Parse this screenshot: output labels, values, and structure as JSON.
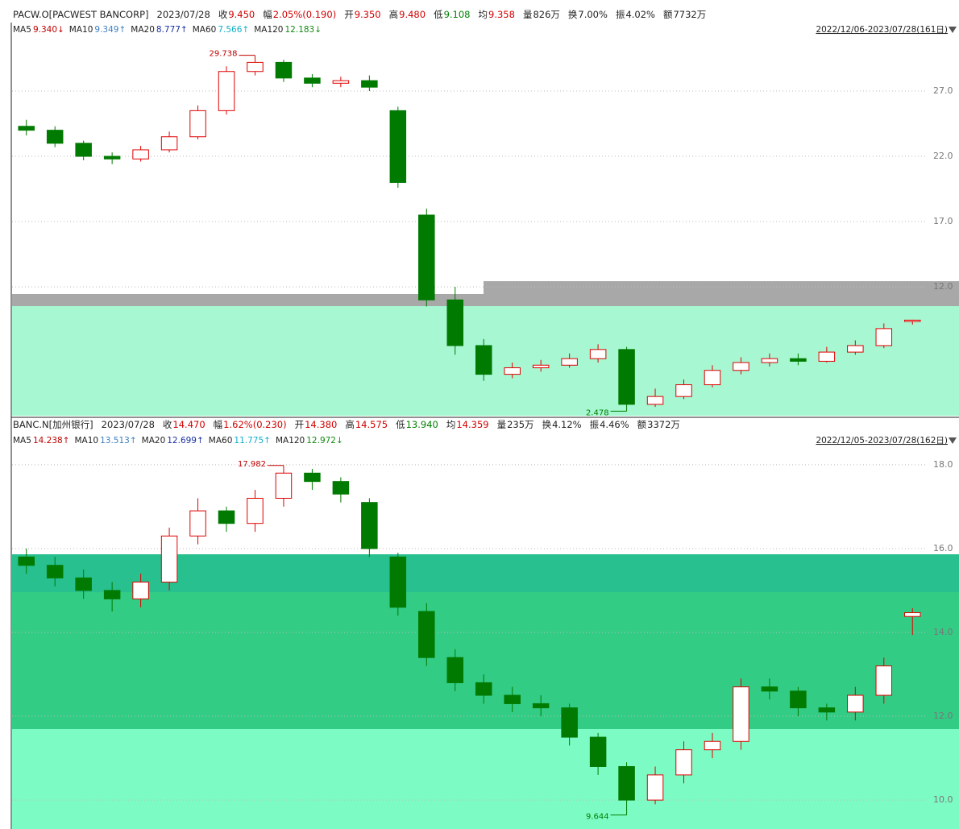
{
  "chart_data": [
    {
      "type": "candlestick",
      "info": [
        {
          "label": "PACW.O[PACWEST BANCORP]",
          "value": "2023/07/28",
          "color": "#222"
        },
        {
          "label": "收",
          "value": "9.450",
          "color": "#d00000"
        },
        {
          "label": "幅",
          "value": "2.05%(0.190)",
          "color": "#d00000"
        },
        {
          "label": "开",
          "value": "9.350",
          "color": "#d00000"
        },
        {
          "label": "高",
          "value": "9.480",
          "color": "#d00000"
        },
        {
          "label": "低",
          "value": "9.108",
          "color": "#008000"
        },
        {
          "label": "均",
          "value": "9.358",
          "color": "#d00000"
        },
        {
          "label": "量",
          "value": "826万",
          "color": "#222"
        },
        {
          "label": "换",
          "value": "7.00%",
          "color": "#222"
        },
        {
          "label": "振",
          "value": "4.02%",
          "color": "#222"
        },
        {
          "label": "额",
          "value": "7732万",
          "color": "#222"
        }
      ],
      "ma_legend": [
        {
          "name": "MA5",
          "value": "9.340↓",
          "color": "#c00000"
        },
        {
          "name": "MA10",
          "value": "9.349↑",
          "color": "#3d7fbf"
        },
        {
          "name": "MA20",
          "value": "8.777↑",
          "color": "#1a2fa0"
        },
        {
          "name": "MA60",
          "value": "7.566↑",
          "color": "#10b0c8"
        },
        {
          "name": "MA120",
          "value": "12.183↓",
          "color": "#128a12"
        }
      ],
      "range": "2022/12/06-2023/07/28(161日)",
      "ylim": [
        2.19,
        31.2
      ],
      "yticks": [
        {
          "value": 27,
          "label": "27.0"
        },
        {
          "value": 22,
          "label": "22.0"
        },
        {
          "value": 17,
          "label": "17.0"
        },
        {
          "value": 12,
          "label": "12.0"
        }
      ],
      "grid": true,
      "up_color": "#e00000",
      "down_color": "#007a00",
      "open": [
        24.3,
        24.0,
        23.0,
        22.0,
        21.8,
        22.5,
        23.5,
        25.5,
        28.5,
        29.2,
        28.0,
        27.6,
        27.8,
        25.5,
        17.5,
        11.0,
        7.5,
        5.3,
        5.8,
        6.0,
        6.5,
        7.2,
        3.0,
        3.6,
        4.5,
        5.6,
        6.2,
        6.5,
        6.3,
        7.0,
        7.5,
        9.35
      ],
      "high": [
        24.8,
        24.3,
        23.2,
        22.3,
        22.8,
        23.9,
        25.9,
        28.9,
        29.738,
        29.4,
        28.3,
        28.1,
        28.2,
        25.8,
        18.0,
        12.0,
        8.0,
        6.2,
        6.4,
        6.9,
        7.6,
        7.4,
        4.2,
        4.9,
        6.0,
        6.6,
        6.9,
        6.9,
        7.4,
        7.9,
        9.2,
        9.48
      ],
      "low": [
        23.6,
        22.7,
        21.7,
        21.4,
        21.6,
        22.3,
        23.3,
        25.2,
        28.2,
        27.7,
        27.3,
        27.3,
        27.0,
        19.6,
        10.5,
        6.8,
        4.8,
        5.0,
        5.5,
        5.8,
        6.2,
        2.478,
        2.8,
        3.4,
        4.3,
        5.3,
        5.9,
        6.0,
        6.2,
        6.8,
        7.3,
        9.108
      ],
      "close": [
        24.0,
        23.0,
        22.0,
        21.8,
        22.5,
        23.5,
        25.5,
        28.5,
        29.2,
        28.0,
        27.6,
        27.8,
        27.3,
        20.0,
        11.0,
        7.5,
        5.3,
        5.8,
        6.0,
        6.5,
        7.2,
        3.0,
        3.6,
        4.5,
        5.6,
        6.2,
        6.5,
        6.3,
        7.0,
        7.5,
        8.8,
        9.45
      ],
      "annotations": [
        {
          "label": "29.738",
          "x": 8,
          "y": 29.738
        },
        {
          "label": "2.478",
          "x": 21,
          "y": 2.478
        }
      ]
    },
    {
      "type": "candlestick",
      "info": [
        {
          "label": "BANC.N[加州银行]",
          "value": "2023/07/28",
          "color": "#222"
        },
        {
          "label": "收",
          "value": "14.470",
          "color": "#d00000"
        },
        {
          "label": "幅",
          "value": "1.62%(0.230)",
          "color": "#d00000"
        },
        {
          "label": "开",
          "value": "14.380",
          "color": "#d00000"
        },
        {
          "label": "高",
          "value": "14.575",
          "color": "#d00000"
        },
        {
          "label": "低",
          "value": "13.940",
          "color": "#008000"
        },
        {
          "label": "均",
          "value": "14.359",
          "color": "#d00000"
        },
        {
          "label": "量",
          "value": "235万",
          "color": "#222"
        },
        {
          "label": "换",
          "value": "4.12%",
          "color": "#222"
        },
        {
          "label": "振",
          "value": "4.46%",
          "color": "#222"
        },
        {
          "label": "额",
          "value": "3372万",
          "color": "#222"
        }
      ],
      "ma_legend": [
        {
          "name": "MA5",
          "value": "14.238↑",
          "color": "#c00000"
        },
        {
          "name": "MA10",
          "value": "13.513↑",
          "color": "#3d7fbf"
        },
        {
          "name": "MA20",
          "value": "12.699↑",
          "color": "#1a2fa0"
        },
        {
          "name": "MA60",
          "value": "11.775↑",
          "color": "#10b0c8"
        },
        {
          "name": "MA120",
          "value": "12.972↓",
          "color": "#128a12"
        }
      ],
      "range": "2022/12/05-2023/07/28(162日)",
      "ylim": [
        9.31,
        18.42
      ],
      "yticks": [
        {
          "value": 18,
          "label": "18.0"
        },
        {
          "value": 16,
          "label": "16.0"
        },
        {
          "value": 14,
          "label": "14.0"
        },
        {
          "value": 12,
          "label": "12.0"
        },
        {
          "value": 10,
          "label": "10.0"
        }
      ],
      "grid": true,
      "up_color": "#e00000",
      "down_color": "#007a00",
      "open": [
        15.8,
        15.6,
        15.3,
        15.0,
        14.8,
        15.2,
        16.3,
        16.9,
        16.6,
        17.2,
        17.8,
        17.6,
        17.1,
        15.8,
        14.5,
        13.4,
        12.8,
        12.5,
        12.3,
        12.2,
        11.5,
        10.8,
        10.0,
        10.6,
        11.2,
        11.4,
        12.7,
        12.6,
        12.2,
        12.1,
        12.5,
        14.38
      ],
      "high": [
        16.0,
        15.8,
        15.5,
        15.2,
        15.4,
        16.5,
        17.2,
        17.0,
        17.4,
        17.982,
        17.9,
        17.7,
        17.2,
        15.9,
        14.7,
        13.6,
        13.0,
        12.7,
        12.5,
        12.3,
        11.6,
        10.9,
        10.8,
        11.4,
        11.6,
        12.9,
        12.9,
        12.7,
        12.3,
        12.7,
        13.4,
        14.575
      ],
      "low": [
        15.4,
        15.1,
        14.8,
        14.5,
        14.6,
        15.0,
        16.1,
        16.4,
        16.4,
        17.0,
        17.4,
        17.1,
        15.8,
        14.4,
        13.2,
        12.6,
        12.3,
        12.1,
        12.0,
        11.3,
        10.6,
        9.644,
        9.9,
        10.4,
        11.0,
        11.2,
        12.4,
        12.0,
        11.9,
        11.9,
        12.3,
        13.94
      ],
      "close": [
        15.6,
        15.3,
        15.0,
        14.8,
        15.2,
        16.3,
        16.9,
        16.6,
        17.2,
        17.8,
        17.6,
        17.3,
        16.0,
        14.6,
        13.4,
        12.8,
        12.5,
        12.3,
        12.2,
        11.5,
        10.8,
        10.0,
        10.6,
        11.2,
        11.4,
        12.7,
        12.6,
        12.2,
        12.1,
        12.5,
        13.2,
        14.47
      ],
      "annotations": [
        {
          "label": "17.982",
          "x": 9,
          "y": 17.982
        },
        {
          "label": "9.644",
          "x": 21,
          "y": 9.644
        }
      ]
    }
  ]
}
